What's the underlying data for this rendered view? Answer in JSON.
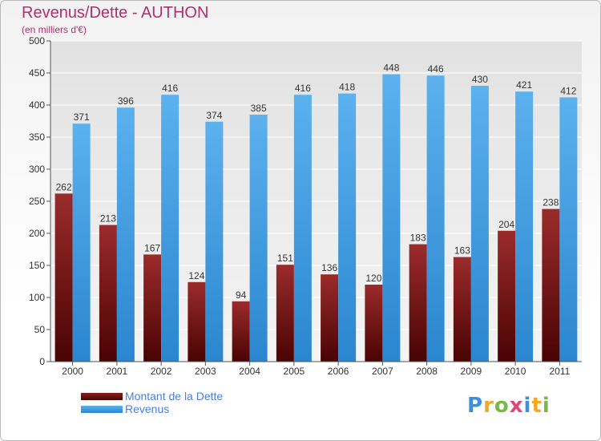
{
  "title": "Revenus/Dette - AUTHON",
  "subtitle": "(en milliers d'€)",
  "logo": "Proxiti",
  "colors": {
    "title": "#b0306a",
    "dette": "#8b1f1f",
    "revenus": "#4aa3e6",
    "legend_text": "#4a7ee0"
  },
  "chart_data": {
    "type": "bar",
    "categories": [
      "2000",
      "2001",
      "2002",
      "2003",
      "2004",
      "2005",
      "2006",
      "2007",
      "2008",
      "2009",
      "2010",
      "2011"
    ],
    "series": [
      {
        "name": "Montant de la Dette",
        "values": [
          262,
          213,
          167,
          124,
          94,
          151,
          136,
          120,
          183,
          163,
          204,
          238
        ]
      },
      {
        "name": "Revenus",
        "values": [
          371,
          396,
          416,
          374,
          385,
          416,
          418,
          448,
          446,
          430,
          421,
          412
        ]
      }
    ],
    "ylim": [
      0,
      500
    ],
    "yticks": [
      0,
      50,
      100,
      150,
      200,
      250,
      300,
      350,
      400,
      450,
      500
    ],
    "grid": true,
    "legend": "bottom-left"
  }
}
